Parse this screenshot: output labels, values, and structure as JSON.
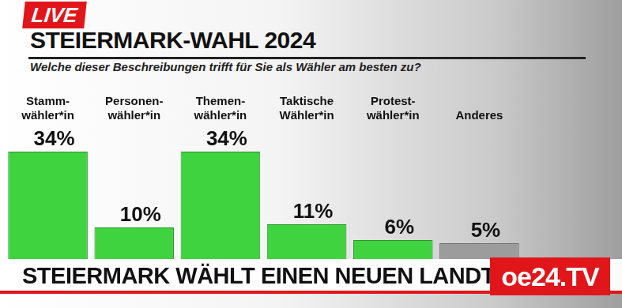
{
  "live": "LIVE",
  "chart_data": {
    "type": "bar",
    "title": "STEIERMARK-WAHL 2024",
    "subtitle": "Welche dieser Beschreibungen trifft für Sie als Wähler am besten zu?",
    "categories": [
      "Stamm-\nwähler*in",
      "Personen-\nwähler*in",
      "Themen-\nwähler*in",
      "Taktische\nWähler*in",
      "Protest-\nwähler*in",
      "Anderes"
    ],
    "values": [
      34,
      10,
      34,
      11,
      6,
      5
    ],
    "value_labels": [
      "34%",
      "10%",
      "34%",
      "11%",
      "6%",
      "5%"
    ],
    "colors": [
      "#3fd43f",
      "#3fd43f",
      "#3fd43f",
      "#3fd43f",
      "#3fd43f",
      "#9c9c9c"
    ],
    "data_labels": true,
    "tick_labels": "x",
    "grid": false
  },
  "banner": "STEIERMARK WÄHLT EINEN NEUEN LANDTAG",
  "logo": "oe24.TV"
}
